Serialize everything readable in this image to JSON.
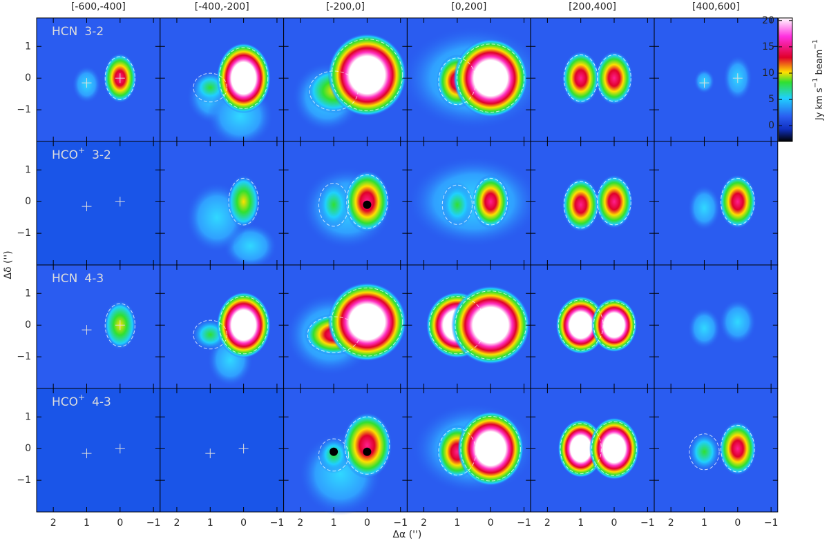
{
  "figure": {
    "columns": [
      "[-600,-400]",
      "[-400,-200]",
      "[-200,0]",
      "[0,200]",
      "[200,400]",
      "[400,600]"
    ],
    "rows": [
      {
        "species": "HCN",
        "transition": "3-2"
      },
      {
        "species": "HCO",
        "charge": "+",
        "transition": "3-2"
      },
      {
        "species": "HCN",
        "transition": "4-3"
      },
      {
        "species": "HCO",
        "charge": "+",
        "transition": "4-3"
      }
    ],
    "x_axis_label": "Δα ('')",
    "y_axis_label": "Δδ ('')",
    "xlim": [
      2.5,
      -1.2
    ],
    "ylim": [
      -2,
      1.9
    ],
    "xticks": [
      2,
      1,
      0,
      {
        "value": -1,
        "label": "−1"
      }
    ],
    "yticks": [
      {
        "value": -1,
        "label": "−1"
      },
      0,
      1
    ],
    "colorbar": {
      "label_parts": [
        "Jy km s",
        "−1",
        " beam",
        "−1"
      ],
      "lim": [
        -3,
        20.5
      ],
      "ticks": [
        0,
        5,
        10,
        15,
        20
      ]
    }
  }
}
